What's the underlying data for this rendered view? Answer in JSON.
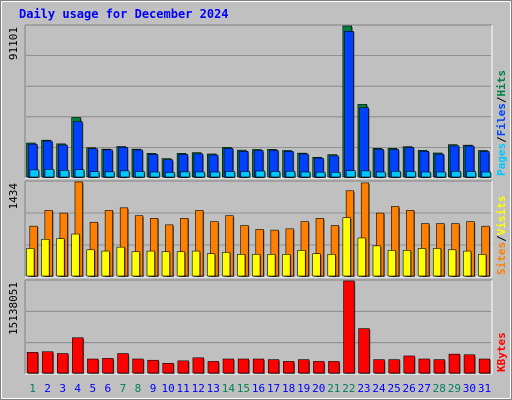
{
  "title": "Daily usage for December 2024",
  "colors": {
    "background": "#c0c0c0",
    "plot_background": "#c0c0c0",
    "title_text": "#0000ff",
    "hits": "#008040",
    "files": "#0040ff",
    "pages": "#00c8ff",
    "visits": "#ffff00",
    "sites": "#ff8000",
    "kbytes": "#ff0000",
    "weekend_day_label": "#00805c",
    "weekday_label": "#0000ff"
  },
  "chart_data": [
    {
      "type": "bar",
      "panel": "hits-files-pages",
      "y_axis_label": "91101",
      "legend": [
        {
          "name": "Pages",
          "color_key": "pages"
        },
        {
          "name": "Files",
          "color_key": "files"
        },
        {
          "name": "Hits",
          "color_key": "hits"
        }
      ],
      "legend_separator": "/",
      "ylim": [
        0,
        91101
      ],
      "categories": [
        "1",
        "2",
        "3",
        "4",
        "5",
        "6",
        "7",
        "8",
        "9",
        "10",
        "11",
        "12",
        "13",
        "14",
        "15",
        "16",
        "17",
        "18",
        "19",
        "20",
        "21",
        "22",
        "23",
        "24",
        "25",
        "26",
        "27",
        "28",
        "29",
        "30",
        "31"
      ],
      "series": [
        {
          "name": "Hits",
          "color_key": "hits",
          "values": [
            20500,
            22200,
            20000,
            35900,
            17600,
            16800,
            18400,
            16800,
            14300,
            11100,
            14300,
            14700,
            13900,
            17900,
            16200,
            16600,
            16700,
            16000,
            14400,
            11900,
            13500,
            91101,
            43800,
            17300,
            17300,
            18300,
            16100,
            14500,
            19500,
            19200,
            16000
          ]
        },
        {
          "name": "Files",
          "color_key": "files",
          "values": [
            19800,
            21700,
            19300,
            33400,
            17100,
            16400,
            17900,
            16300,
            13700,
            10400,
            13600,
            14000,
            13300,
            17200,
            15500,
            16000,
            16100,
            15500,
            13900,
            11400,
            12800,
            87900,
            41800,
            16600,
            16600,
            17800,
            15500,
            13800,
            18800,
            18700,
            15400
          ]
        },
        {
          "name": "Pages",
          "color_key": "pages",
          "values": [
            4300,
            4600,
            4000,
            4400,
            3200,
            3100,
            3700,
            3300,
            3000,
            2700,
            3100,
            3000,
            3000,
            3300,
            3300,
            3600,
            3300,
            3400,
            3000,
            2900,
            2800,
            3800,
            3700,
            3000,
            3400,
            3300,
            3000,
            3000,
            3400,
            3300,
            3000
          ]
        }
      ]
    },
    {
      "type": "bar",
      "panel": "visits-sites",
      "y_axis_label": "1434",
      "legend": [
        {
          "name": "Sites",
          "color_key": "sites"
        },
        {
          "name": "Visits",
          "color_key": "visits"
        }
      ],
      "legend_separator": "/",
      "ylim": [
        0,
        1434
      ],
      "categories": [
        "1",
        "2",
        "3",
        "4",
        "5",
        "6",
        "7",
        "8",
        "9",
        "10",
        "11",
        "12",
        "13",
        "14",
        "15",
        "16",
        "17",
        "18",
        "19",
        "20",
        "21",
        "22",
        "23",
        "24",
        "25",
        "26",
        "27",
        "28",
        "29",
        "30",
        "31"
      ],
      "series": [
        {
          "name": "Sites",
          "color_key": "sites",
          "values": [
            760,
            1000,
            960,
            1434,
            820,
            1000,
            1040,
            920,
            880,
            780,
            880,
            1000,
            830,
            920,
            770,
            710,
            700,
            720,
            830,
            880,
            770,
            1300,
            1420,
            960,
            1060,
            1000,
            800,
            800,
            800,
            830,
            760
          ]
        },
        {
          "name": "Visits",
          "color_key": "visits",
          "values": [
            420,
            560,
            570,
            640,
            400,
            380,
            440,
            370,
            380,
            370,
            370,
            380,
            340,
            360,
            330,
            330,
            330,
            330,
            390,
            340,
            330,
            890,
            580,
            460,
            390,
            390,
            420,
            420,
            400,
            380,
            330
          ]
        }
      ]
    },
    {
      "type": "bar",
      "panel": "kbytes",
      "y_axis_label": "15138051",
      "legend": [
        {
          "name": "KBytes",
          "color_key": "kbytes"
        }
      ],
      "ylim": [
        0,
        15138051
      ],
      "categories": [
        "1",
        "2",
        "3",
        "4",
        "5",
        "6",
        "7",
        "8",
        "9",
        "10",
        "11",
        "12",
        "13",
        "14",
        "15",
        "16",
        "17",
        "18",
        "19",
        "20",
        "21",
        "22",
        "23",
        "24",
        "25",
        "26",
        "27",
        "28",
        "29",
        "30",
        "31"
      ],
      "series": [
        {
          "name": "KBytes",
          "color_key": "kbytes",
          "values": [
            3400000,
            3500000,
            3200000,
            5800000,
            2300000,
            2400000,
            3200000,
            2300000,
            2100000,
            1600000,
            2000000,
            2500000,
            1900000,
            2300000,
            2300000,
            2300000,
            2200000,
            1900000,
            2200000,
            1900000,
            1900000,
            15138051,
            7300000,
            2200000,
            2200000,
            2800000,
            2300000,
            2200000,
            3100000,
            3000000,
            2300000
          ]
        }
      ]
    }
  ],
  "x_axis": {
    "day_labels": [
      "1",
      "2",
      "3",
      "4",
      "5",
      "6",
      "7",
      "8",
      "9",
      "10",
      "11",
      "12",
      "13",
      "14",
      "15",
      "16",
      "17",
      "18",
      "19",
      "20",
      "21",
      "22",
      "23",
      "24",
      "25",
      "26",
      "27",
      "28",
      "29",
      "30",
      "31"
    ],
    "weekend_days": [
      "1",
      "7",
      "8",
      "14",
      "15",
      "21",
      "22",
      "28",
      "29"
    ]
  }
}
